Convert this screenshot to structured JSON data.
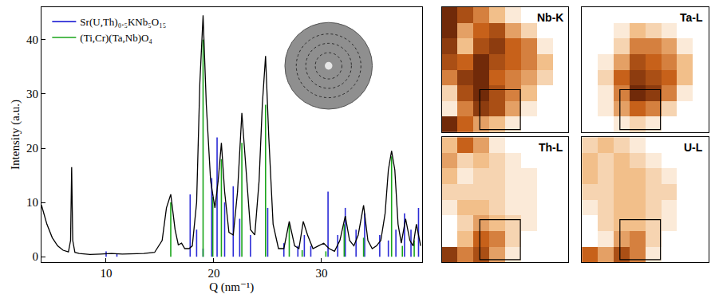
{
  "chart_data": [
    {
      "type": "line",
      "x_label": "Q (nm⁻¹)",
      "y_label": "Intensity (a.u.)",
      "x": [
        4.0,
        4.5,
        5.0,
        5.5,
        6.0,
        6.5,
        6.7,
        6.8,
        6.9,
        7.1,
        7.5,
        8.5,
        9.5,
        10.5,
        11.5,
        12.5,
        13.5,
        14.5,
        15.2,
        15.6,
        16.0,
        16.4,
        16.7,
        17.0,
        17.3,
        17.7,
        18.0,
        18.4,
        18.7,
        19.0,
        19.3,
        19.7,
        20.1,
        20.4,
        20.7,
        21.0,
        21.4,
        21.8,
        22.2,
        22.6,
        23.0,
        23.4,
        23.8,
        24.2,
        24.5,
        24.8,
        25.1,
        25.5,
        26.0,
        26.5,
        27.0,
        27.5,
        27.9,
        28.3,
        28.7,
        29.2,
        29.7,
        30.2,
        30.7,
        31.2,
        31.7,
        32.2,
        32.6,
        33.0,
        33.4,
        33.9,
        34.3,
        34.7,
        35.1,
        35.5,
        35.9,
        36.2,
        36.5,
        36.8,
        37.1,
        37.4,
        37.8,
        38.2,
        38.5,
        38.8,
        39.2
      ],
      "values": [
        9.5,
        6,
        3.5,
        2,
        1.2,
        0.9,
        3,
        16.5,
        3,
        0.8,
        0.6,
        0.4,
        0.5,
        0.6,
        0.5,
        0.5,
        0.6,
        0.8,
        3,
        9,
        11.5,
        5,
        2.2,
        2.5,
        1.5,
        1.5,
        2,
        10,
        32,
        44.5,
        28,
        14,
        9,
        14,
        21,
        12,
        4.5,
        4,
        12,
        26.5,
        15,
        5,
        4,
        14,
        28,
        37,
        22,
        6,
        1.5,
        1.5,
        6.5,
        2,
        1.5,
        6.5,
        4,
        1.5,
        2,
        2.5,
        1.5,
        1,
        3,
        7.5,
        3,
        2,
        4,
        9.5,
        3,
        1.5,
        2,
        3,
        8,
        16,
        19.5,
        16,
        6,
        2.5,
        7,
        3,
        2,
        6,
        2
      ],
      "color": "#000000",
      "series": [
        {
          "name": "Sr(U,Th)₀.₅KNb₅O₁₅",
          "color": "#2b2bd6",
          "type": "stem",
          "x": [
            10.0,
            11.0,
            17.8,
            18.4,
            19.0,
            19.8,
            20.3,
            21.0,
            21.8,
            22.4,
            23.4,
            25.0,
            26.5,
            27.8,
            28.4,
            29.0,
            30.6,
            31.5,
            32.2,
            33.2,
            34.0,
            35.4,
            36.2,
            36.9,
            37.7,
            38.3,
            39.0
          ],
          "values": [
            1,
            0.5,
            11.5,
            5,
            1.5,
            14.5,
            22,
            10,
            13,
            7,
            4,
            9,
            2.5,
            2,
            4,
            2,
            12,
            4,
            9,
            5,
            8,
            4,
            3,
            5,
            8,
            5,
            9
          ]
        },
        {
          "name": "(Ti,Cr)(Ta,Nb)O₄",
          "color": "#1aa51a",
          "type": "stem",
          "x": [
            16.0,
            19.0,
            19.9,
            20.7,
            22.6,
            24.8,
            27.0,
            28.2,
            30.4,
            32.1,
            33.9,
            36.5,
            37.5,
            38.6
          ],
          "values": [
            10,
            40,
            11,
            18,
            21,
            28,
            6,
            1.2,
            1,
            6,
            3.5,
            18.5,
            2,
            3
          ]
        }
      ],
      "xlim": [
        4,
        39.3
      ],
      "ylim": [
        -1,
        46
      ],
      "xticks": [
        10,
        20,
        30
      ],
      "yticks": [
        0,
        10,
        20,
        30,
        40
      ],
      "legend": "top left",
      "grid": false
    },
    {
      "type": "heatmap",
      "title": "Nb-K",
      "zlim": [
        0,
        1
      ],
      "tick_labels": false,
      "z": [
        [
          0.9,
          0.7,
          0.5,
          0.3,
          0.1,
          0,
          0,
          0
        ],
        [
          0.9,
          0.4,
          0.6,
          0.7,
          0.4,
          0.2,
          0,
          0
        ],
        [
          0.8,
          0.3,
          0.7,
          0.8,
          0.6,
          0.5,
          0.1,
          0
        ],
        [
          0.7,
          0.6,
          0.9,
          0.7,
          0.6,
          0.5,
          0.3,
          0
        ],
        [
          0.5,
          0.8,
          0.9,
          0.6,
          0.5,
          0.4,
          0.2,
          0
        ],
        [
          0.2,
          0.7,
          0.9,
          0.7,
          0.5,
          0.3,
          0,
          0
        ],
        [
          0.1,
          0.5,
          0.8,
          0.7,
          0.4,
          0.1,
          0,
          0
        ],
        [
          0.9,
          0.6,
          0.4,
          0.3,
          0.1,
          0,
          0,
          0
        ]
      ]
    },
    {
      "type": "heatmap",
      "title": "Ta-L",
      "zlim": [
        0,
        1
      ],
      "tick_labels": false,
      "z": [
        [
          0,
          0,
          0,
          0,
          0,
          0,
          0,
          0
        ],
        [
          0,
          0,
          0.1,
          0.3,
          0.2,
          0.1,
          0,
          0
        ],
        [
          0,
          0,
          0.2,
          0.5,
          0.5,
          0.4,
          0.1,
          0
        ],
        [
          0,
          0.1,
          0.4,
          0.7,
          0.6,
          0.5,
          0.3,
          0
        ],
        [
          0,
          0.2,
          0.6,
          0.8,
          0.7,
          0.6,
          0.3,
          0
        ],
        [
          0,
          0.1,
          0.5,
          0.9,
          0.8,
          0.5,
          0.1,
          0
        ],
        [
          0,
          0.1,
          0.4,
          0.6,
          0.5,
          0.2,
          0,
          0
        ],
        [
          0,
          0,
          0.1,
          0.2,
          0.1,
          0,
          0,
          0
        ]
      ]
    },
    {
      "type": "heatmap",
      "title": "Th-L",
      "zlim": [
        0,
        1
      ],
      "tick_labels": false,
      "z": [
        [
          0.3,
          0.6,
          0.4,
          0.1,
          0,
          0,
          0,
          0
        ],
        [
          0.4,
          0.2,
          0.3,
          0.2,
          0.1,
          0,
          0,
          0
        ],
        [
          0.3,
          0.1,
          0.2,
          0.2,
          0.1,
          0.1,
          0,
          0
        ],
        [
          0.2,
          0.2,
          0.2,
          0.2,
          0.1,
          0.1,
          0,
          0
        ],
        [
          0.1,
          0.3,
          0.3,
          0.2,
          0.1,
          0.1,
          0,
          0
        ],
        [
          0,
          0.2,
          0.4,
          0.3,
          0.2,
          0.1,
          0,
          0
        ],
        [
          0,
          0.3,
          0.6,
          0.5,
          0.2,
          0,
          0,
          0
        ],
        [
          0.8,
          0.5,
          0.7,
          0.4,
          0.1,
          0,
          0,
          0
        ]
      ]
    },
    {
      "type": "heatmap",
      "title": "U-L",
      "zlim": [
        0,
        1
      ],
      "tick_labels": false,
      "z": [
        [
          0.2,
          0.3,
          0.2,
          0.1,
          0,
          0,
          0,
          0
        ],
        [
          0.3,
          0.2,
          0.3,
          0.2,
          0.1,
          0,
          0,
          0
        ],
        [
          0.3,
          0.2,
          0.3,
          0.3,
          0.2,
          0.1,
          0,
          0
        ],
        [
          0.2,
          0.2,
          0.3,
          0.3,
          0.2,
          0.2,
          0,
          0
        ],
        [
          0.1,
          0.2,
          0.3,
          0.3,
          0.2,
          0.1,
          0,
          0
        ],
        [
          0,
          0.2,
          0.3,
          0.3,
          0.2,
          0.1,
          0,
          0
        ],
        [
          0,
          0.1,
          0.4,
          0.5,
          0.2,
          0,
          0,
          0
        ],
        [
          0.6,
          0.4,
          0.7,
          0.5,
          0.1,
          0,
          0,
          0
        ]
      ]
    }
  ]
}
